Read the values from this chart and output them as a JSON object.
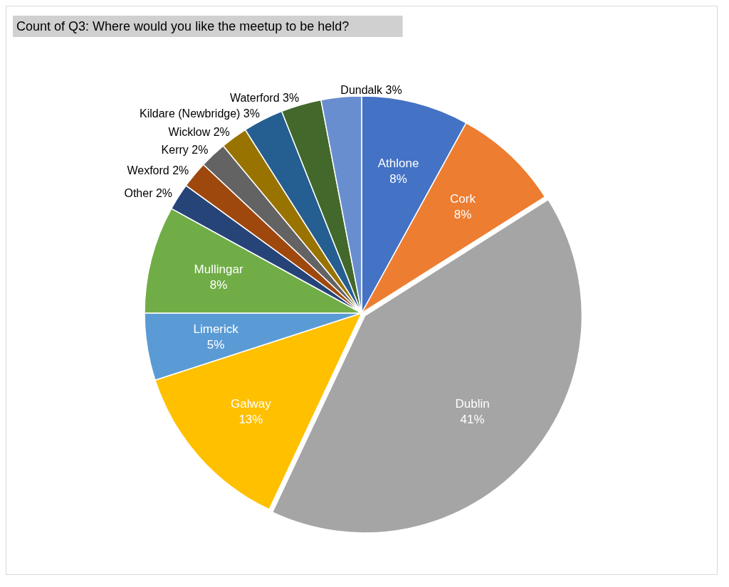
{
  "chart_data": {
    "type": "pie",
    "title": "Count of Q3: Where would you like the meetup to be held?",
    "categories": [
      "Athlone",
      "Cork",
      "Dublin",
      "Galway",
      "Limerick",
      "Mullingar",
      "Other",
      "Wexford",
      "Kerry",
      "Wicklow",
      "Kildare (Newbridge)",
      "Waterford",
      "Dundalk"
    ],
    "values": [
      8,
      8,
      41,
      13,
      5,
      8,
      2,
      2,
      2,
      2,
      3,
      3,
      3
    ],
    "colors": [
      "#4472c4",
      "#ed7d31",
      "#a5a5a5",
      "#ffc000",
      "#5b9bd5",
      "#70ad47",
      "#264478",
      "#9e480e",
      "#636363",
      "#997300",
      "#255e91",
      "#43682b",
      "#698ed0"
    ],
    "value_labels": [
      "8%",
      "8%",
      "41%",
      "13%",
      "5%",
      "8%",
      "2%",
      "2%",
      "2%",
      "2%",
      "3%",
      "3%",
      "3%"
    ]
  }
}
